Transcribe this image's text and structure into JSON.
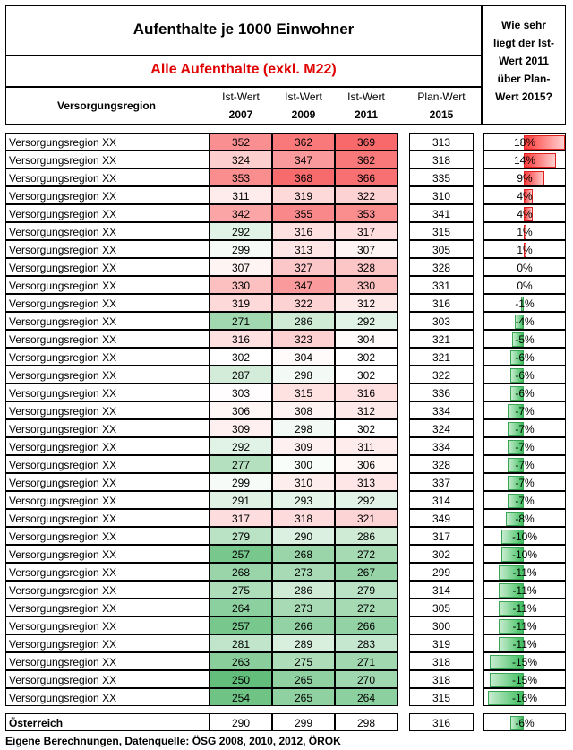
{
  "header": {
    "title": "Aufenthalte je 1000 Einwohner",
    "subtitle": "Alle Aufenthalte (exkl. M22)",
    "region_col": "Versorgungsregion",
    "cols": [
      {
        "label": "Ist-Wert",
        "year": "2007"
      },
      {
        "label": "Ist-Wert",
        "year": "2009"
      },
      {
        "label": "Ist-Wert",
        "year": "2011"
      },
      {
        "label": "Plan-Wert",
        "year": "2015"
      }
    ],
    "question": [
      "Wie sehr",
      "liegt der Ist-",
      "Wert 2011",
      "über Plan-",
      "Wert 2015?"
    ]
  },
  "rows": [
    {
      "region": "Versorgungsregion XX",
      "v2007": 352,
      "v2009": 362,
      "v2011": 369,
      "plan": 313,
      "pct": "18%",
      "pct_val": 18
    },
    {
      "region": "Versorgungsregion XX",
      "v2007": 324,
      "v2009": 347,
      "v2011": 362,
      "plan": 318,
      "pct": "14%",
      "pct_val": 14
    },
    {
      "region": "Versorgungsregion XX",
      "v2007": 353,
      "v2009": 368,
      "v2011": 366,
      "plan": 335,
      "pct": "9%",
      "pct_val": 9
    },
    {
      "region": "Versorgungsregion XX",
      "v2007": 311,
      "v2009": 319,
      "v2011": 322,
      "plan": 310,
      "pct": "4%",
      "pct_val": 4
    },
    {
      "region": "Versorgungsregion XX",
      "v2007": 342,
      "v2009": 355,
      "v2011": 353,
      "plan": 341,
      "pct": "4%",
      "pct_val": 4
    },
    {
      "region": "Versorgungsregion XX",
      "v2007": 292,
      "v2009": 316,
      "v2011": 317,
      "plan": 315,
      "pct": "1%",
      "pct_val": 1
    },
    {
      "region": "Versorgungsregion XX",
      "v2007": 299,
      "v2009": 313,
      "v2011": 307,
      "plan": 305,
      "pct": "1%",
      "pct_val": 1
    },
    {
      "region": "Versorgungsregion XX",
      "v2007": 307,
      "v2009": 327,
      "v2011": 328,
      "plan": 328,
      "pct": "0%",
      "pct_val": 0
    },
    {
      "region": "Versorgungsregion XX",
      "v2007": 330,
      "v2009": 347,
      "v2011": 330,
      "plan": 331,
      "pct": "0%",
      "pct_val": 0
    },
    {
      "region": "Versorgungsregion XX",
      "v2007": 319,
      "v2009": 322,
      "v2011": 312,
      "plan": 316,
      "pct": "-1%",
      "pct_val": -1
    },
    {
      "region": "Versorgungsregion XX",
      "v2007": 271,
      "v2009": 286,
      "v2011": 292,
      "plan": 303,
      "pct": "-4%",
      "pct_val": -4
    },
    {
      "region": "Versorgungsregion XX",
      "v2007": 316,
      "v2009": 323,
      "v2011": 304,
      "plan": 321,
      "pct": "-5%",
      "pct_val": -5
    },
    {
      "region": "Versorgungsregion XX",
      "v2007": 302,
      "v2009": 304,
      "v2011": 302,
      "plan": 321,
      "pct": "-6%",
      "pct_val": -6
    },
    {
      "region": "Versorgungsregion XX",
      "v2007": 287,
      "v2009": 298,
      "v2011": 302,
      "plan": 322,
      "pct": "-6%",
      "pct_val": -6
    },
    {
      "region": "Versorgungsregion XX",
      "v2007": 303,
      "v2009": 315,
      "v2011": 316,
      "plan": 336,
      "pct": "-6%",
      "pct_val": -6
    },
    {
      "region": "Versorgungsregion XX",
      "v2007": 306,
      "v2009": 308,
      "v2011": 312,
      "plan": 334,
      "pct": "-7%",
      "pct_val": -7
    },
    {
      "region": "Versorgungsregion XX",
      "v2007": 309,
      "v2009": 298,
      "v2011": 302,
      "plan": 324,
      "pct": "-7%",
      "pct_val": -7
    },
    {
      "region": "Versorgungsregion XX",
      "v2007": 292,
      "v2009": 309,
      "v2011": 311,
      "plan": 334,
      "pct": "-7%",
      "pct_val": -7
    },
    {
      "region": "Versorgungsregion XX",
      "v2007": 277,
      "v2009": 300,
      "v2011": 306,
      "plan": 328,
      "pct": "-7%",
      "pct_val": -7
    },
    {
      "region": "Versorgungsregion XX",
      "v2007": 299,
      "v2009": 310,
      "v2011": 313,
      "plan": 337,
      "pct": "-7%",
      "pct_val": -7
    },
    {
      "region": "Versorgungsregion XX",
      "v2007": 291,
      "v2009": 293,
      "v2011": 292,
      "plan": 314,
      "pct": "-7%",
      "pct_val": -7
    },
    {
      "region": "Versorgungsregion XX",
      "v2007": 317,
      "v2009": 318,
      "v2011": 321,
      "plan": 349,
      "pct": "-8%",
      "pct_val": -8
    },
    {
      "region": "Versorgungsregion XX",
      "v2007": 279,
      "v2009": 290,
      "v2011": 286,
      "plan": 317,
      "pct": "-10%",
      "pct_val": -10
    },
    {
      "region": "Versorgungsregion XX",
      "v2007": 257,
      "v2009": 268,
      "v2011": 272,
      "plan": 302,
      "pct": "-10%",
      "pct_val": -10
    },
    {
      "region": "Versorgungsregion XX",
      "v2007": 268,
      "v2009": 273,
      "v2011": 267,
      "plan": 299,
      "pct": "-11%",
      "pct_val": -11
    },
    {
      "region": "Versorgungsregion XX",
      "v2007": 275,
      "v2009": 286,
      "v2011": 279,
      "plan": 314,
      "pct": "-11%",
      "pct_val": -11
    },
    {
      "region": "Versorgungsregion XX",
      "v2007": 264,
      "v2009": 273,
      "v2011": 272,
      "plan": 305,
      "pct": "-11%",
      "pct_val": -11
    },
    {
      "region": "Versorgungsregion XX",
      "v2007": 257,
      "v2009": 266,
      "v2011": 266,
      "plan": 300,
      "pct": "-11%",
      "pct_val": -11
    },
    {
      "region": "Versorgungsregion XX",
      "v2007": 281,
      "v2009": 289,
      "v2011": 283,
      "plan": 319,
      "pct": "-11%",
      "pct_val": -11
    },
    {
      "region": "Versorgungsregion XX",
      "v2007": 263,
      "v2009": 275,
      "v2011": 271,
      "plan": 318,
      "pct": "-15%",
      "pct_val": -15
    },
    {
      "region": "Versorgungsregion XX",
      "v2007": 250,
      "v2009": 265,
      "v2011": 270,
      "plan": 318,
      "pct": "-15%",
      "pct_val": -15
    },
    {
      "region": "Versorgungsregion XX",
      "v2007": 254,
      "v2009": 265,
      "v2011": 264,
      "plan": 315,
      "pct": "-16%",
      "pct_val": -16
    }
  ],
  "total": {
    "region": "Österreich",
    "v2007": 290,
    "v2009": 299,
    "v2011": 298,
    "plan": 316,
    "pct": "-6%",
    "pct_val": -6
  },
  "footer": "Eigene Berechnungen, Datenquelle: ÖSG 2008, 2010, 2012, ÖROK",
  "colors": {
    "high": "#f8696b",
    "mid": "#ffffff",
    "low": "#63be7b",
    "title_red": "#e00000"
  }
}
